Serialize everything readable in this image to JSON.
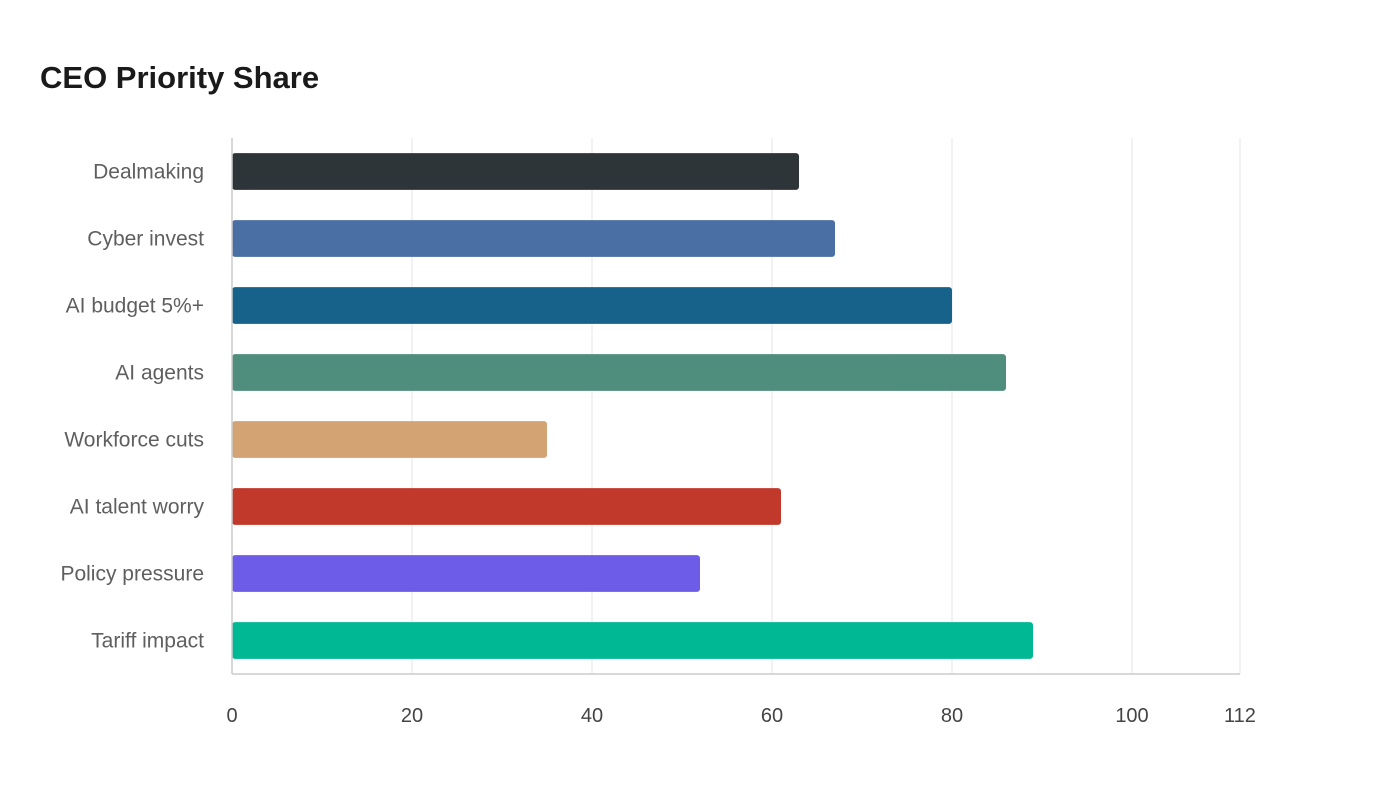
{
  "chart_data": {
    "type": "bar",
    "orientation": "horizontal",
    "title": "CEO Priority Share",
    "xlabel": "",
    "ylabel": "",
    "categories": [
      "Dealmaking",
      "Cyber invest",
      "AI budget 5%+",
      "AI agents",
      "Workforce cuts",
      "AI talent worry",
      "Policy pressure",
      "Tariff impact"
    ],
    "values": [
      63,
      67,
      80,
      86,
      35,
      61,
      52,
      89
    ],
    "colors": [
      "#2e3538",
      "#4a6fa5",
      "#17628a",
      "#4f8e7c",
      "#d4a373",
      "#c0392b",
      "#6c5ce7",
      "#00b894"
    ],
    "xlim": [
      0,
      112
    ],
    "xticks": [
      0,
      20,
      40,
      60,
      80,
      100,
      112
    ],
    "grid": true,
    "legend": "none"
  }
}
